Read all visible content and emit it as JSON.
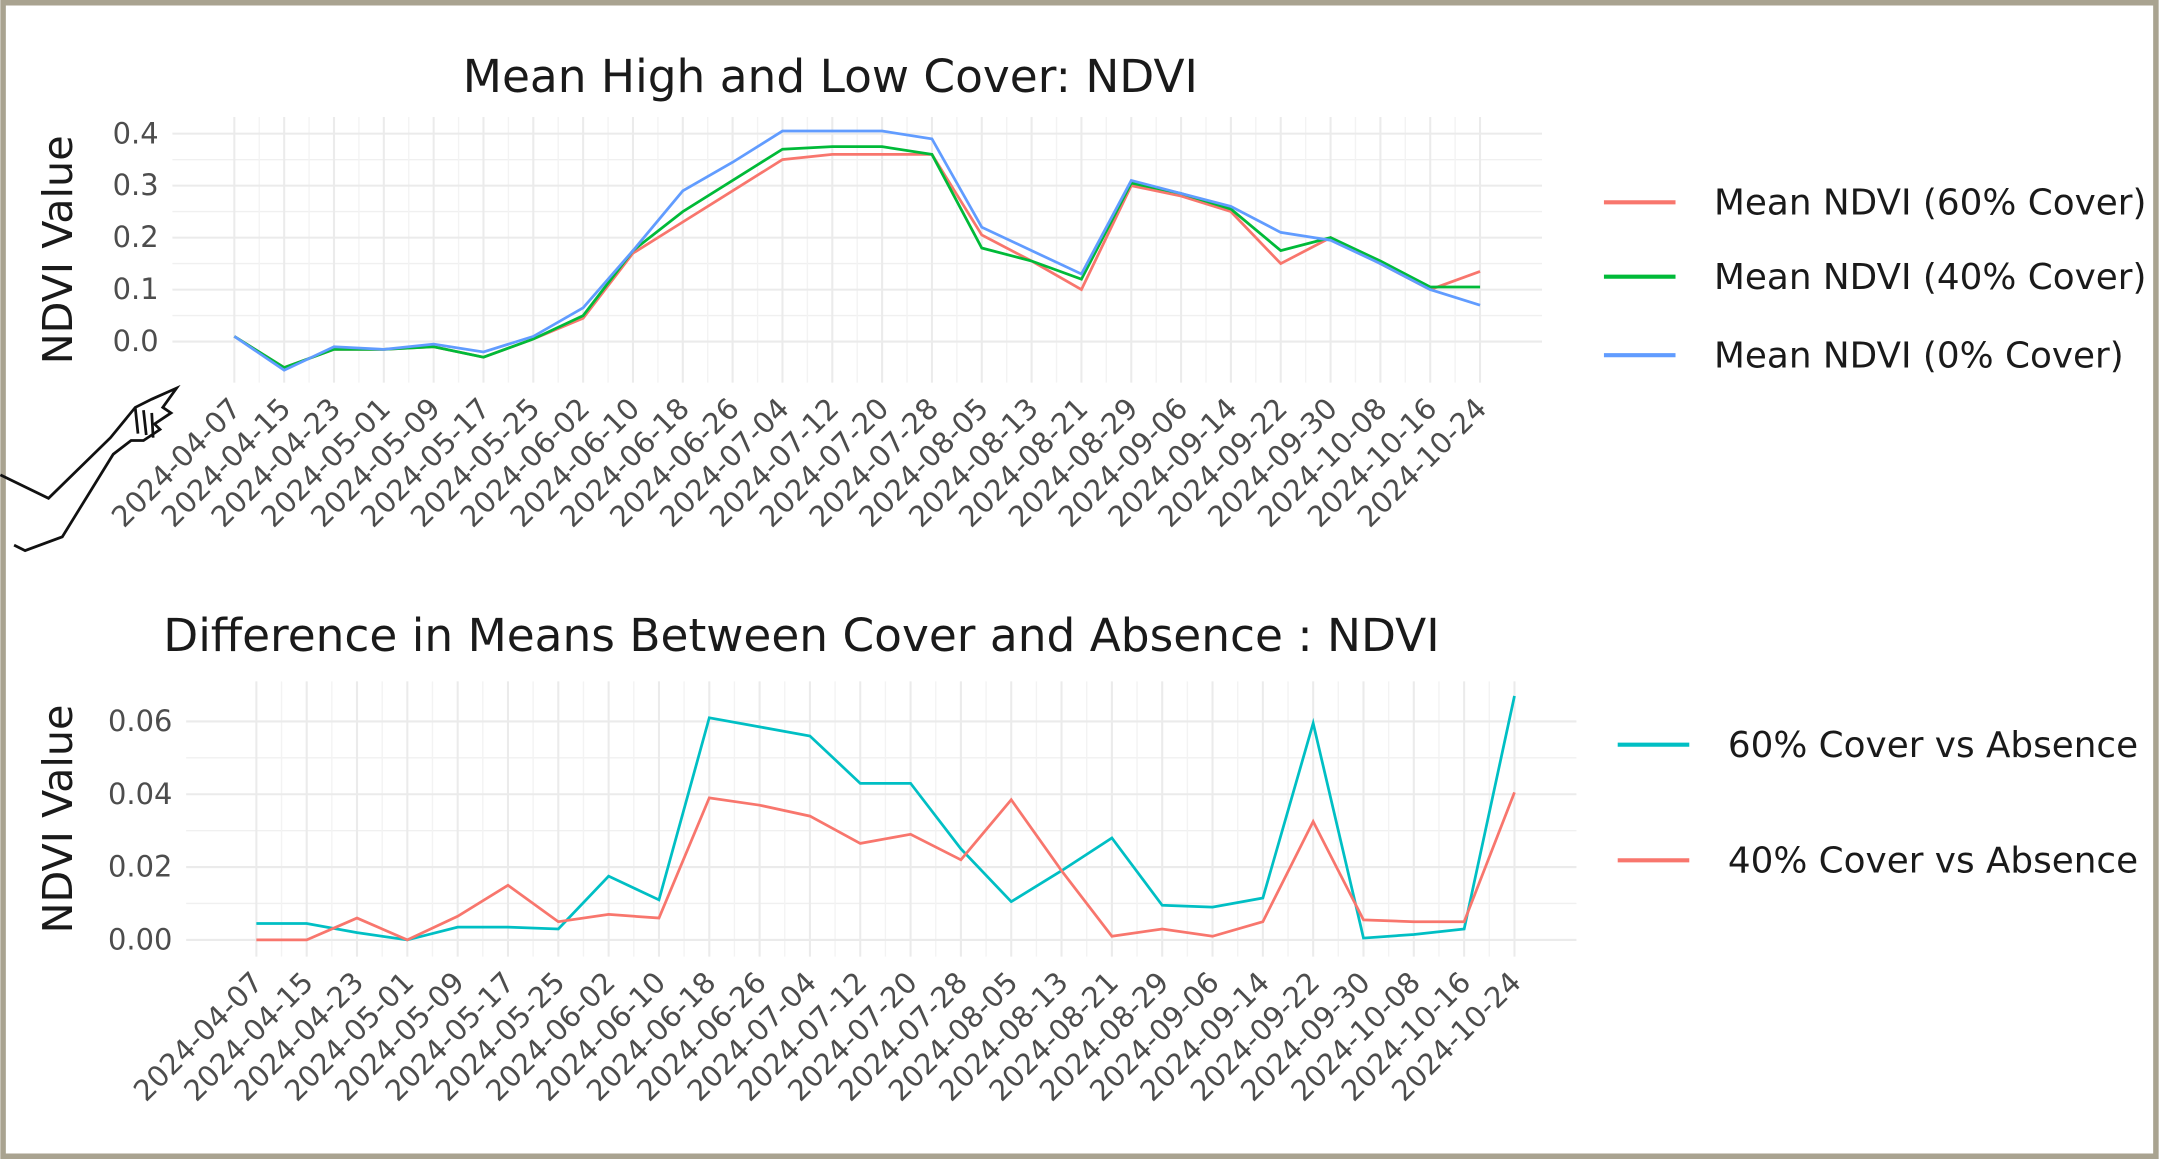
{
  "chart_data": [
    {
      "type": "line",
      "title": "Mean High and Low Cover: NDVI",
      "y_label": "NDVI Value",
      "categories": [
        "2024-04-07",
        "2024-04-15",
        "2024-04-23",
        "2024-05-01",
        "2024-05-09",
        "2024-05-17",
        "2024-05-25",
        "2024-06-02",
        "2024-06-10",
        "2024-06-18",
        "2024-06-26",
        "2024-07-04",
        "2024-07-12",
        "2024-07-20",
        "2024-07-28",
        "2024-08-05",
        "2024-08-13",
        "2024-08-21",
        "2024-08-29",
        "2024-09-06",
        "2024-09-14",
        "2024-09-22",
        "2024-09-30",
        "2024-10-08",
        "2024-10-16",
        "2024-10-24"
      ],
      "series": [
        {
          "name": "Mean NDVI (60% Cover)",
          "color": "#F8766D",
          "values": [
            0.01,
            -0.05,
            -0.015,
            -0.015,
            -0.01,
            -0.03,
            0.005,
            0.045,
            0.17,
            0.23,
            0.29,
            0.35,
            0.36,
            0.36,
            0.36,
            0.205,
            0.155,
            0.1,
            0.3,
            0.28,
            0.25,
            0.15,
            0.2,
            0.15,
            0.1,
            0.135
          ]
        },
        {
          "name": "Mean NDVI (40% Cover)",
          "color": "#00BA38",
          "values": [
            0.01,
            -0.05,
            -0.015,
            -0.015,
            -0.01,
            -0.03,
            0.005,
            0.05,
            0.175,
            0.25,
            0.31,
            0.37,
            0.375,
            0.375,
            0.36,
            0.18,
            0.155,
            0.12,
            0.305,
            0.285,
            0.255,
            0.175,
            0.2,
            0.155,
            0.105,
            0.105
          ]
        },
        {
          "name": "Mean NDVI (0% Cover)",
          "color": "#619CFF",
          "values": [
            0.01,
            -0.055,
            -0.01,
            -0.015,
            -0.005,
            -0.02,
            0.01,
            0.065,
            0.175,
            0.29,
            0.345,
            0.405,
            0.405,
            0.405,
            0.39,
            0.22,
            0.175,
            0.13,
            0.31,
            0.285,
            0.26,
            0.21,
            0.195,
            0.15,
            0.1,
            0.07
          ]
        }
      ],
      "ylim": [
        -0.079,
        0.432
      ],
      "yticks": [
        {
          "value": 0,
          "label": "0.0"
        },
        0.1,
        0.2,
        0.3,
        0.4
      ],
      "grid": true
    },
    {
      "type": "line",
      "title": "Difference in Means Between Cover and Absence : NDVI",
      "y_label": "NDVI Value",
      "categories": [
        "2024-04-07",
        "2024-04-15",
        "2024-04-23",
        "2024-05-01",
        "2024-05-09",
        "2024-05-17",
        "2024-05-25",
        "2024-06-02",
        "2024-06-10",
        "2024-06-18",
        "2024-06-26",
        "2024-07-04",
        "2024-07-12",
        "2024-07-20",
        "2024-07-28",
        "2024-08-05",
        "2024-08-13",
        "2024-08-21",
        "2024-08-29",
        "2024-09-06",
        "2024-09-14",
        "2024-09-22",
        "2024-09-30",
        "2024-10-08",
        "2024-10-16",
        "2024-10-24"
      ],
      "series": [
        {
          "name": "60% Cover vs Absence",
          "color": "#00BFC4",
          "values": [
            0.0045,
            0.0045,
            0.002,
            0.0,
            0.0035,
            0.0035,
            0.003,
            0.0175,
            0.011,
            0.061,
            0.0585,
            0.056,
            0.043,
            0.043,
            0.025,
            0.0105,
            0.019,
            0.028,
            0.0095,
            0.009,
            0.0115,
            0.0595,
            0.0005,
            0.0015,
            0.003,
            0.067
          ]
        },
        {
          "name": "40% Cover vs Absence",
          "color": "#F8766D",
          "values": [
            0.0,
            0.0,
            0.006,
            0.0,
            0.0065,
            0.015,
            0.005,
            0.007,
            0.006,
            0.039,
            0.037,
            0.034,
            0.0265,
            0.029,
            0.022,
            0.0385,
            0.019,
            0.001,
            0.003,
            0.001,
            0.005,
            0.0325,
            0.0055,
            0.005,
            0.005,
            0.0405
          ]
        }
      ],
      "ylim": [
        -0.0046,
        0.071
      ],
      "yticks": [
        {
          "value": 0,
          "label": "0.00"
        },
        {
          "value": 0.02,
          "label": "0.02"
        },
        {
          "value": 0.04,
          "label": "0.04"
        },
        {
          "value": 0.06,
          "label": "0.06"
        }
      ],
      "grid": true
    }
  ]
}
